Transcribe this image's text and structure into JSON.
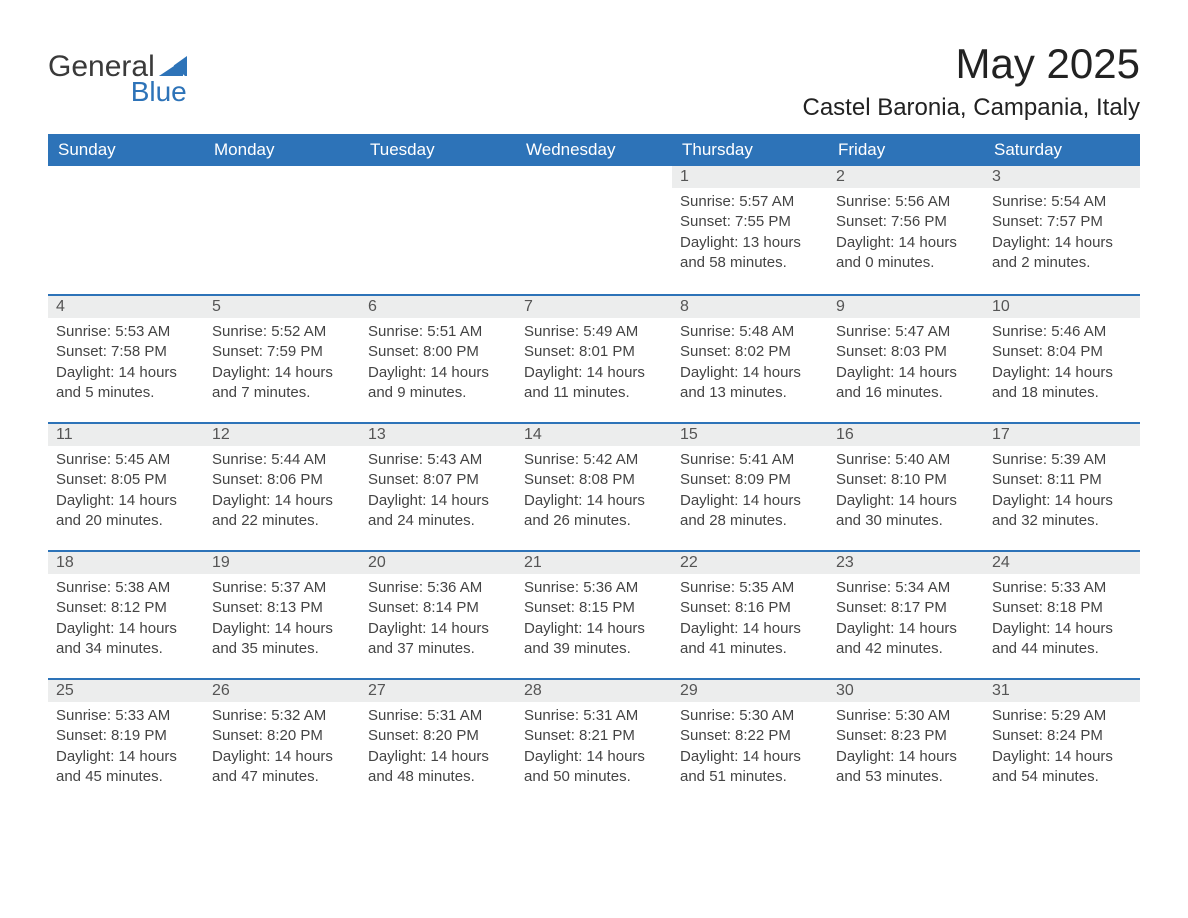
{
  "brand": {
    "word1": "General",
    "word2": "Blue",
    "accent_color": "#2d73b8"
  },
  "title": "May 2025",
  "location": "Castel Baronia, Campania, Italy",
  "columns": [
    "Sunday",
    "Monday",
    "Tuesday",
    "Wednesday",
    "Thursday",
    "Friday",
    "Saturday"
  ],
  "colors": {
    "header_bg": "#2d73b8",
    "header_text": "#ffffff",
    "dayhead_bg": "#eceded",
    "dayhead_border": "#2d73b8",
    "text": "#333333",
    "background": "#ffffff"
  },
  "weeks": [
    [
      null,
      null,
      null,
      null,
      {
        "n": "1",
        "sunrise": "Sunrise: 5:57 AM",
        "sunset": "Sunset: 7:55 PM",
        "daylight": "Daylight: 13 hours and 58 minutes."
      },
      {
        "n": "2",
        "sunrise": "Sunrise: 5:56 AM",
        "sunset": "Sunset: 7:56 PM",
        "daylight": "Daylight: 14 hours and 0 minutes."
      },
      {
        "n": "3",
        "sunrise": "Sunrise: 5:54 AM",
        "sunset": "Sunset: 7:57 PM",
        "daylight": "Daylight: 14 hours and 2 minutes."
      }
    ],
    [
      {
        "n": "4",
        "sunrise": "Sunrise: 5:53 AM",
        "sunset": "Sunset: 7:58 PM",
        "daylight": "Daylight: 14 hours and 5 minutes."
      },
      {
        "n": "5",
        "sunrise": "Sunrise: 5:52 AM",
        "sunset": "Sunset: 7:59 PM",
        "daylight": "Daylight: 14 hours and 7 minutes."
      },
      {
        "n": "6",
        "sunrise": "Sunrise: 5:51 AM",
        "sunset": "Sunset: 8:00 PM",
        "daylight": "Daylight: 14 hours and 9 minutes."
      },
      {
        "n": "7",
        "sunrise": "Sunrise: 5:49 AM",
        "sunset": "Sunset: 8:01 PM",
        "daylight": "Daylight: 14 hours and 11 minutes."
      },
      {
        "n": "8",
        "sunrise": "Sunrise: 5:48 AM",
        "sunset": "Sunset: 8:02 PM",
        "daylight": "Daylight: 14 hours and 13 minutes."
      },
      {
        "n": "9",
        "sunrise": "Sunrise: 5:47 AM",
        "sunset": "Sunset: 8:03 PM",
        "daylight": "Daylight: 14 hours and 16 minutes."
      },
      {
        "n": "10",
        "sunrise": "Sunrise: 5:46 AM",
        "sunset": "Sunset: 8:04 PM",
        "daylight": "Daylight: 14 hours and 18 minutes."
      }
    ],
    [
      {
        "n": "11",
        "sunrise": "Sunrise: 5:45 AM",
        "sunset": "Sunset: 8:05 PM",
        "daylight": "Daylight: 14 hours and 20 minutes."
      },
      {
        "n": "12",
        "sunrise": "Sunrise: 5:44 AM",
        "sunset": "Sunset: 8:06 PM",
        "daylight": "Daylight: 14 hours and 22 minutes."
      },
      {
        "n": "13",
        "sunrise": "Sunrise: 5:43 AM",
        "sunset": "Sunset: 8:07 PM",
        "daylight": "Daylight: 14 hours and 24 minutes."
      },
      {
        "n": "14",
        "sunrise": "Sunrise: 5:42 AM",
        "sunset": "Sunset: 8:08 PM",
        "daylight": "Daylight: 14 hours and 26 minutes."
      },
      {
        "n": "15",
        "sunrise": "Sunrise: 5:41 AM",
        "sunset": "Sunset: 8:09 PM",
        "daylight": "Daylight: 14 hours and 28 minutes."
      },
      {
        "n": "16",
        "sunrise": "Sunrise: 5:40 AM",
        "sunset": "Sunset: 8:10 PM",
        "daylight": "Daylight: 14 hours and 30 minutes."
      },
      {
        "n": "17",
        "sunrise": "Sunrise: 5:39 AM",
        "sunset": "Sunset: 8:11 PM",
        "daylight": "Daylight: 14 hours and 32 minutes."
      }
    ],
    [
      {
        "n": "18",
        "sunrise": "Sunrise: 5:38 AM",
        "sunset": "Sunset: 8:12 PM",
        "daylight": "Daylight: 14 hours and 34 minutes."
      },
      {
        "n": "19",
        "sunrise": "Sunrise: 5:37 AM",
        "sunset": "Sunset: 8:13 PM",
        "daylight": "Daylight: 14 hours and 35 minutes."
      },
      {
        "n": "20",
        "sunrise": "Sunrise: 5:36 AM",
        "sunset": "Sunset: 8:14 PM",
        "daylight": "Daylight: 14 hours and 37 minutes."
      },
      {
        "n": "21",
        "sunrise": "Sunrise: 5:36 AM",
        "sunset": "Sunset: 8:15 PM",
        "daylight": "Daylight: 14 hours and 39 minutes."
      },
      {
        "n": "22",
        "sunrise": "Sunrise: 5:35 AM",
        "sunset": "Sunset: 8:16 PM",
        "daylight": "Daylight: 14 hours and 41 minutes."
      },
      {
        "n": "23",
        "sunrise": "Sunrise: 5:34 AM",
        "sunset": "Sunset: 8:17 PM",
        "daylight": "Daylight: 14 hours and 42 minutes."
      },
      {
        "n": "24",
        "sunrise": "Sunrise: 5:33 AM",
        "sunset": "Sunset: 8:18 PM",
        "daylight": "Daylight: 14 hours and 44 minutes."
      }
    ],
    [
      {
        "n": "25",
        "sunrise": "Sunrise: 5:33 AM",
        "sunset": "Sunset: 8:19 PM",
        "daylight": "Daylight: 14 hours and 45 minutes."
      },
      {
        "n": "26",
        "sunrise": "Sunrise: 5:32 AM",
        "sunset": "Sunset: 8:20 PM",
        "daylight": "Daylight: 14 hours and 47 minutes."
      },
      {
        "n": "27",
        "sunrise": "Sunrise: 5:31 AM",
        "sunset": "Sunset: 8:20 PM",
        "daylight": "Daylight: 14 hours and 48 minutes."
      },
      {
        "n": "28",
        "sunrise": "Sunrise: 5:31 AM",
        "sunset": "Sunset: 8:21 PM",
        "daylight": "Daylight: 14 hours and 50 minutes."
      },
      {
        "n": "29",
        "sunrise": "Sunrise: 5:30 AM",
        "sunset": "Sunset: 8:22 PM",
        "daylight": "Daylight: 14 hours and 51 minutes."
      },
      {
        "n": "30",
        "sunrise": "Sunrise: 5:30 AM",
        "sunset": "Sunset: 8:23 PM",
        "daylight": "Daylight: 14 hours and 53 minutes."
      },
      {
        "n": "31",
        "sunrise": "Sunrise: 5:29 AM",
        "sunset": "Sunset: 8:24 PM",
        "daylight": "Daylight: 14 hours and 54 minutes."
      }
    ]
  ]
}
